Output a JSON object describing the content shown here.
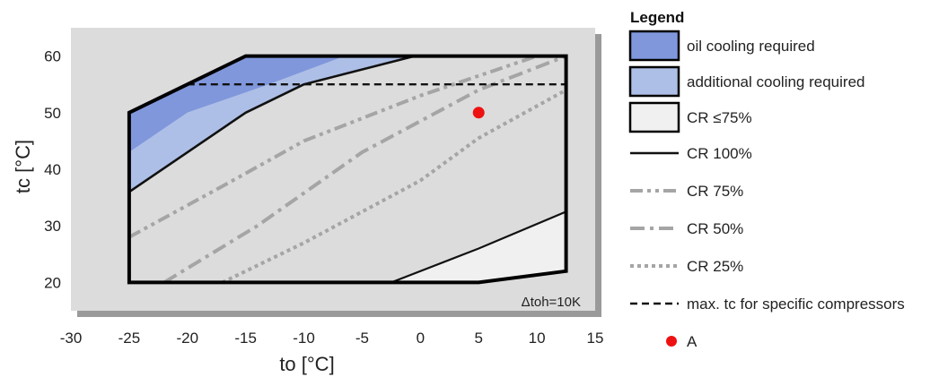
{
  "chart_data": {
    "type": "area",
    "xlabel": "to [°C]",
    "ylabel": "tc [°C]",
    "xlim": [
      -30,
      15
    ],
    "ylim": [
      15,
      65
    ],
    "x_ticks": [
      -30,
      -25,
      -20,
      -15,
      -10,
      -5,
      0,
      5,
      10,
      15
    ],
    "y_ticks": [
      20,
      30,
      40,
      50,
      60
    ],
    "x_tick_labels": [
      "-30",
      "-25",
      "-20",
      "-15",
      "-10",
      "-5",
      "0",
      "5",
      "10",
      "15"
    ],
    "y_tick_labels": [
      "20",
      "30",
      "40",
      "50",
      "60"
    ],
    "grid": false,
    "annotation": "Δtoh=10K",
    "envelope": [
      [
        -25,
        20
      ],
      [
        -25,
        50
      ],
      [
        -20,
        55
      ],
      [
        -15,
        60
      ],
      [
        12.5,
        60
      ],
      [
        12.5,
        22
      ],
      [
        5,
        20
      ]
    ],
    "regions": [
      {
        "name": "oil cooling required",
        "color": "#8097dc",
        "points": [
          [
            -25,
            50
          ],
          [
            -20,
            55
          ],
          [
            -15,
            60
          ],
          [
            -6.5,
            60
          ],
          [
            -13,
            55
          ],
          [
            -20,
            50
          ],
          [
            -25,
            43
          ]
        ]
      },
      {
        "name": "additional cooling required",
        "color": "#adbfe6",
        "points": [
          [
            -25,
            43
          ],
          [
            -20,
            50
          ],
          [
            -13,
            55
          ],
          [
            -6.5,
            60
          ],
          [
            -0.5,
            60
          ],
          [
            -10,
            55
          ],
          [
            -15,
            50
          ],
          [
            -25,
            36
          ]
        ]
      },
      {
        "name": "CR ≤75%",
        "color": "#f0f0f0",
        "points": [
          [
            -2.5,
            20
          ],
          [
            5,
            20
          ],
          [
            12.5,
            22
          ],
          [
            12.5,
            32.5
          ]
        ]
      }
    ],
    "lines": [
      {
        "name": "CR 100%",
        "style": "solid-thick",
        "points": [
          [
            -25,
            36
          ],
          [
            -15,
            50
          ],
          [
            -10,
            55
          ],
          [
            -0.5,
            60
          ]
        ]
      },
      {
        "name": "CR 75%",
        "style": "dashdotdot",
        "points": [
          [
            -25,
            28
          ],
          [
            -17,
            37
          ],
          [
            -10,
            45
          ],
          [
            0,
            53
          ],
          [
            10,
            60
          ]
        ]
      },
      {
        "name": "CR 50%",
        "style": "dashdot",
        "points": [
          [
            -22,
            20
          ],
          [
            -14,
            30
          ],
          [
            -5,
            43
          ],
          [
            5,
            54
          ],
          [
            12.5,
            60
          ]
        ]
      },
      {
        "name": "CR 25%",
        "style": "dotted",
        "points": [
          [
            -17,
            20
          ],
          [
            -10,
            27
          ],
          [
            0,
            38
          ],
          [
            5,
            45.5
          ],
          [
            12.5,
            54
          ]
        ]
      },
      {
        "name": "CR 100%",
        "style": "solid-thin",
        "points": [
          [
            5,
            20
          ],
          [
            12.5,
            22
          ]
        ]
      },
      {
        "name": "CR 100%",
        "style": "solid-thin",
        "points": [
          [
            -2.5,
            20
          ],
          [
            5,
            26
          ],
          [
            12.5,
            32.5
          ]
        ]
      },
      {
        "name": "max. tc for specific compressors",
        "style": "dashed",
        "points": [
          [
            -20,
            55
          ],
          [
            12.5,
            55
          ]
        ]
      }
    ],
    "points": [
      {
        "name": "A",
        "x": 5,
        "y": 50,
        "color": "#ee1111"
      }
    ],
    "legend": {
      "title": "Legend",
      "placement": "right",
      "items": [
        {
          "label": "oil cooling required",
          "kind": "box",
          "color": "#8097dc"
        },
        {
          "label": "additional cooling required",
          "kind": "box",
          "color": "#adbfe6"
        },
        {
          "label": "CR ≤75%",
          "kind": "box",
          "color": "#f0f0f0"
        },
        {
          "label": "CR 100%",
          "kind": "line",
          "style": "solid-thick"
        },
        {
          "label": "CR 75%",
          "kind": "line",
          "style": "dashdotdot"
        },
        {
          "label": "CR 50%",
          "kind": "line",
          "style": "dashdot"
        },
        {
          "label": "CR 25%",
          "kind": "line",
          "style": "dotted"
        },
        {
          "label": "max. tc for specific compressors",
          "kind": "line",
          "style": "dashed"
        },
        {
          "label": "A",
          "kind": "point",
          "color": "#ee1111"
        }
      ]
    }
  }
}
